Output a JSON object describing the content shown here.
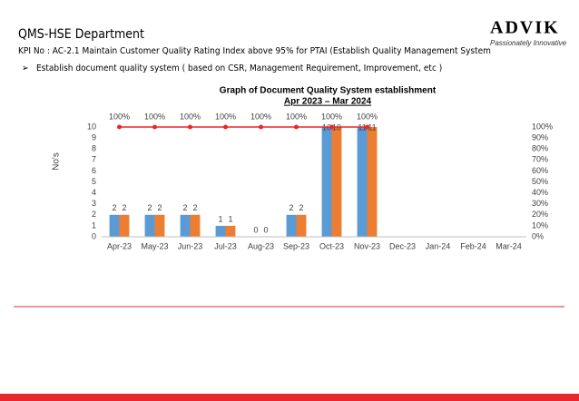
{
  "header": {
    "title": "QMS-HSE Department",
    "kpi": "KPI No : AC-2.1  Maintain Customer Quality Rating Index above 95% for  PTAI (Establish Quality Management System",
    "bullet": "Establish document quality system ( based on CSR, Management Requirement, Improvement, etc )",
    "logo": "ADVIK",
    "tagline": "Passionately Innovative"
  },
  "chart_data": {
    "type": "bar",
    "title": "Graph of Document Quality System establishment",
    "subtitle": "Apr 2023 – Mar 2024",
    "y_label": "No's",
    "categories": [
      "Apr-23",
      "May-23",
      "Jun-23",
      "Jul-23",
      "Aug-23",
      "Sep-23",
      "Oct-23",
      "Nov-23",
      "Dec-23",
      "Jan-24",
      "Feb-24",
      "Mar-24"
    ],
    "series": [
      {
        "color": "#5b9bd5",
        "values": [
          2,
          2,
          2,
          1,
          0,
          2,
          10,
          11,
          null,
          null,
          null,
          null
        ]
      },
      {
        "color": "#ed7d31",
        "values": [
          2,
          2,
          2,
          1,
          0,
          2,
          10,
          11,
          null,
          null,
          null,
          null
        ]
      },
      {
        "type": "line",
        "axis": "y2",
        "color": "#e8262b",
        "values": [
          100,
          100,
          100,
          100,
          100,
          100,
          100,
          100,
          null,
          null,
          null,
          null
        ],
        "value_labels": [
          "100%",
          "100%",
          "100%",
          "100%",
          "100%",
          "100%",
          "100%",
          "100%",
          null,
          null,
          null,
          null
        ]
      }
    ],
    "ylim": [
      0,
      10
    ],
    "yticks": [
      0,
      1,
      2,
      3,
      4,
      5,
      6,
      7,
      8,
      9,
      10
    ],
    "y2lim": [
      0,
      100
    ],
    "y2ticks": [
      {
        "value": 0,
        "label": "0%"
      },
      {
        "value": 10,
        "label": "10%"
      },
      {
        "value": 20,
        "label": "20%"
      },
      {
        "value": 30,
        "label": "30%"
      },
      {
        "value": 40,
        "label": "40%"
      },
      {
        "value": 50,
        "label": "50%"
      },
      {
        "value": 60,
        "label": "60%"
      },
      {
        "value": 70,
        "label": "70%"
      },
      {
        "value": 80,
        "label": "80%"
      },
      {
        "value": 90,
        "label": "90%"
      },
      {
        "value": 100,
        "label": "100%"
      }
    ]
  }
}
